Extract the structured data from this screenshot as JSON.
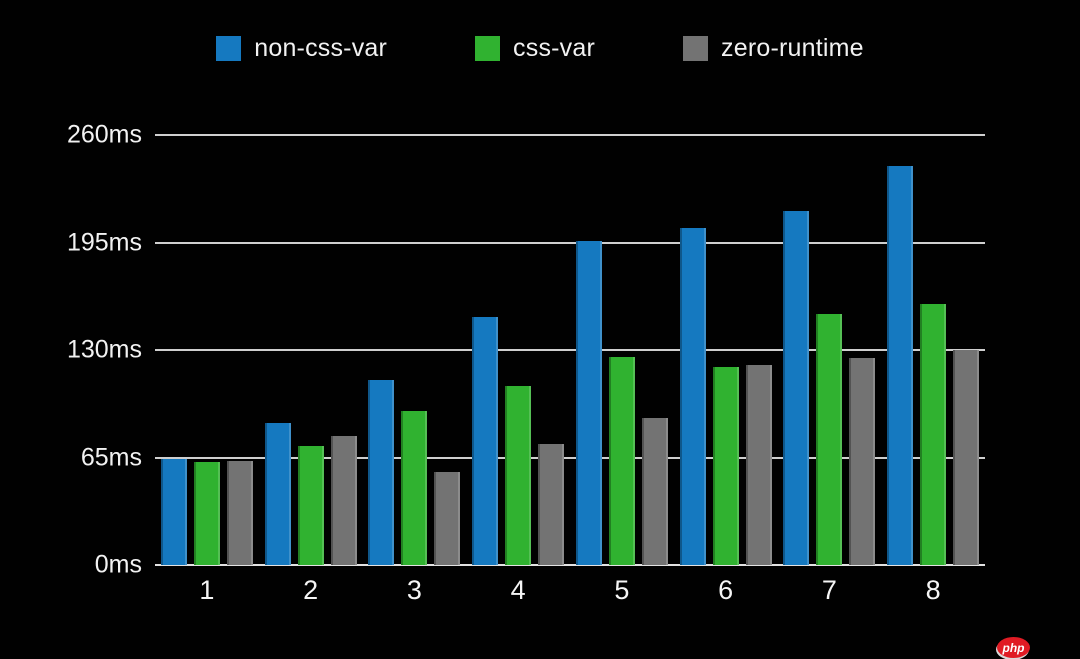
{
  "canvas": {
    "background": "#010101",
    "text_color": "#f2f2f2",
    "gridline_color": "#cfcfcf"
  },
  "chart_data": {
    "type": "bar",
    "title": "",
    "categories": [
      "1",
      "2",
      "3",
      "4",
      "5",
      "6",
      "7",
      "8"
    ],
    "series": [
      {
        "name": "non-css-var",
        "color": "#1579c0",
        "values": [
          64,
          86,
          112,
          150,
          196,
          204,
          214,
          241
        ]
      },
      {
        "name": "css-var",
        "color": "#30b230",
        "values": [
          62,
          72,
          93,
          108,
          126,
          120,
          152,
          158
        ]
      },
      {
        "name": "zero-runtime",
        "color": "#737373",
        "values": [
          63,
          78,
          56,
          73,
          89,
          121,
          125,
          130
        ]
      }
    ],
    "yticks": {
      "labels": [
        "260ms",
        "195ms",
        "130ms",
        "65ms",
        "0ms"
      ],
      "values": [
        260,
        195,
        130,
        65,
        0
      ]
    },
    "ylim": [
      0,
      260
    ],
    "unit": "ms",
    "grid": true,
    "legend_position": "top"
  },
  "watermark": {
    "text": "php",
    "color": "#e01b24"
  }
}
